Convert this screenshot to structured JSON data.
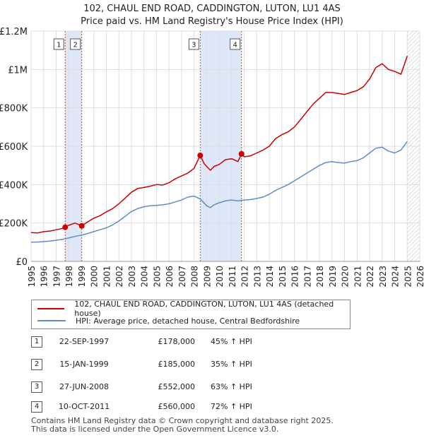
{
  "header": {
    "title_line1": "102, CHAUL END ROAD, CADDINGTON, LUTON, LU1 4AS",
    "title_line2": "Price paid vs. HM Land Registry's House Price Index (HPI)"
  },
  "colors": {
    "price_line": "#cc0000",
    "hpi_line": "#5b8dc9",
    "shade": "#dde7f7",
    "grid": "#dddddd",
    "marker_line": "#cc4444"
  },
  "chart_data": {
    "type": "line",
    "ylim": [
      0,
      1200000
    ],
    "xlim": [
      1995,
      2026
    ],
    "y_ticks": [
      {
        "value": 0,
        "label": "£0"
      },
      {
        "value": 200000,
        "label": "£200K"
      },
      {
        "value": 400000,
        "label": "£400K"
      },
      {
        "value": 600000,
        "label": "£600K"
      },
      {
        "value": 800000,
        "label": "£800K"
      },
      {
        "value": 1000000,
        "label": "£1M"
      },
      {
        "value": 1200000,
        "label": "£1.2M"
      }
    ],
    "x_ticks": [
      "1995",
      "1996",
      "1997",
      "1998",
      "1999",
      "2000",
      "2001",
      "2002",
      "2003",
      "2004",
      "2005",
      "2006",
      "2007",
      "2008",
      "2009",
      "2010",
      "2011",
      "2012",
      "2013",
      "2014",
      "2015",
      "2016",
      "2017",
      "2018",
      "2019",
      "2020",
      "2021",
      "2022",
      "2023",
      "2024",
      "2025",
      "2026"
    ],
    "shaded_ranges": [
      [
        1997.72,
        1999.04
      ],
      [
        2008.49,
        2011.78
      ]
    ],
    "future_hatch_from": 2025.0,
    "series": [
      {
        "name": "102, CHAUL END ROAD, CADDINGTON, LUTON, LU1 4AS (detached house)",
        "color": "#cc0000",
        "x": [
          1995.0,
          1995.5,
          1996.0,
          1996.5,
          1997.0,
          1997.5,
          1997.72,
          1998.0,
          1998.5,
          1999.04,
          1999.5,
          2000.0,
          2000.5,
          2001.0,
          2001.5,
          2002.0,
          2002.5,
          2003.0,
          2003.5,
          2004.0,
          2004.5,
          2005.0,
          2005.5,
          2006.0,
          2006.5,
          2007.0,
          2007.5,
          2008.0,
          2008.49,
          2008.8,
          2009.0,
          2009.3,
          2009.6,
          2010.0,
          2010.5,
          2011.0,
          2011.5,
          2011.78,
          2012.0,
          2012.5,
          2013.0,
          2013.5,
          2014.0,
          2014.5,
          2015.0,
          2015.5,
          2016.0,
          2016.5,
          2017.0,
          2017.5,
          2018.0,
          2018.5,
          2019.0,
          2019.5,
          2020.0,
          2020.5,
          2021.0,
          2021.5,
          2022.0,
          2022.5,
          2023.0,
          2023.5,
          2024.0,
          2024.5,
          2025.0
        ],
        "values": [
          150000,
          148000,
          155000,
          158000,
          165000,
          172000,
          178000,
          188000,
          200000,
          185000,
          205000,
          225000,
          238000,
          258000,
          275000,
          300000,
          330000,
          360000,
          380000,
          385000,
          392000,
          400000,
          398000,
          410000,
          430000,
          445000,
          460000,
          485000,
          552000,
          510000,
          495000,
          475000,
          495000,
          505000,
          530000,
          535000,
          520000,
          560000,
          545000,
          550000,
          565000,
          580000,
          600000,
          640000,
          660000,
          675000,
          700000,
          740000,
          780000,
          820000,
          850000,
          880000,
          880000,
          875000,
          870000,
          880000,
          890000,
          910000,
          950000,
          1010000,
          1030000,
          1000000,
          990000,
          975000,
          1070000
        ]
      },
      {
        "name": "HPI: Average price, detached house, Central Bedfordshire",
        "color": "#5b8dc9",
        "x": [
          1995.0,
          1995.5,
          1996.0,
          1996.5,
          1997.0,
          1997.5,
          1998.0,
          1998.5,
          1999.0,
          1999.5,
          2000.0,
          2000.5,
          2001.0,
          2001.5,
          2002.0,
          2002.5,
          2003.0,
          2003.5,
          2004.0,
          2004.5,
          2005.0,
          2005.5,
          2006.0,
          2006.5,
          2007.0,
          2007.5,
          2008.0,
          2008.5,
          2009.0,
          2009.3,
          2009.6,
          2010.0,
          2010.5,
          2011.0,
          2011.5,
          2012.0,
          2012.5,
          2013.0,
          2013.5,
          2014.0,
          2014.5,
          2015.0,
          2015.5,
          2016.0,
          2016.5,
          2017.0,
          2017.5,
          2018.0,
          2018.5,
          2019.0,
          2019.5,
          2020.0,
          2020.5,
          2021.0,
          2021.5,
          2022.0,
          2022.5,
          2023.0,
          2023.5,
          2024.0,
          2024.5,
          2025.0
        ],
        "values": [
          100000,
          101000,
          103000,
          106000,
          110000,
          115000,
          122000,
          130000,
          137000,
          145000,
          155000,
          165000,
          175000,
          190000,
          210000,
          235000,
          260000,
          275000,
          285000,
          290000,
          292000,
          295000,
          300000,
          310000,
          320000,
          335000,
          340000,
          325000,
          290000,
          280000,
          295000,
          305000,
          315000,
          320000,
          315000,
          320000,
          322000,
          328000,
          335000,
          350000,
          370000,
          385000,
          400000,
          420000,
          440000,
          460000,
          480000,
          500000,
          515000,
          520000,
          515000,
          512000,
          520000,
          525000,
          540000,
          565000,
          590000,
          595000,
          575000,
          565000,
          580000,
          625000
        ]
      }
    ],
    "sales": [
      {
        "label": "1",
        "x": 1997.72,
        "price": 178000
      },
      {
        "label": "2",
        "x": 1999.04,
        "price": 185000
      },
      {
        "label": "3",
        "x": 2008.49,
        "price": 552000
      },
      {
        "label": "4",
        "x": 2011.78,
        "price": 560000
      }
    ]
  },
  "legend": {
    "price_label": "102, CHAUL END ROAD, CADDINGTON, LUTON, LU1 4AS (detached house)",
    "hpi_label": "HPI: Average price, detached house, Central Bedfordshire"
  },
  "transactions": [
    {
      "num": "1",
      "date": "22-SEP-1997",
      "price": "£178,000",
      "hpi": "45% ↑ HPI"
    },
    {
      "num": "2",
      "date": "15-JAN-1999",
      "price": "£185,000",
      "hpi": "35% ↑ HPI"
    },
    {
      "num": "3",
      "date": "27-JUN-2008",
      "price": "£552,000",
      "hpi": "63% ↑ HPI"
    },
    {
      "num": "4",
      "date": "10-OCT-2011",
      "price": "£560,000",
      "hpi": "72% ↑ HPI"
    }
  ],
  "footer": {
    "line1": "Contains HM Land Registry data © Crown copyright and database right 2025.",
    "line2": "This data is licensed under the Open Government Licence v3.0."
  }
}
